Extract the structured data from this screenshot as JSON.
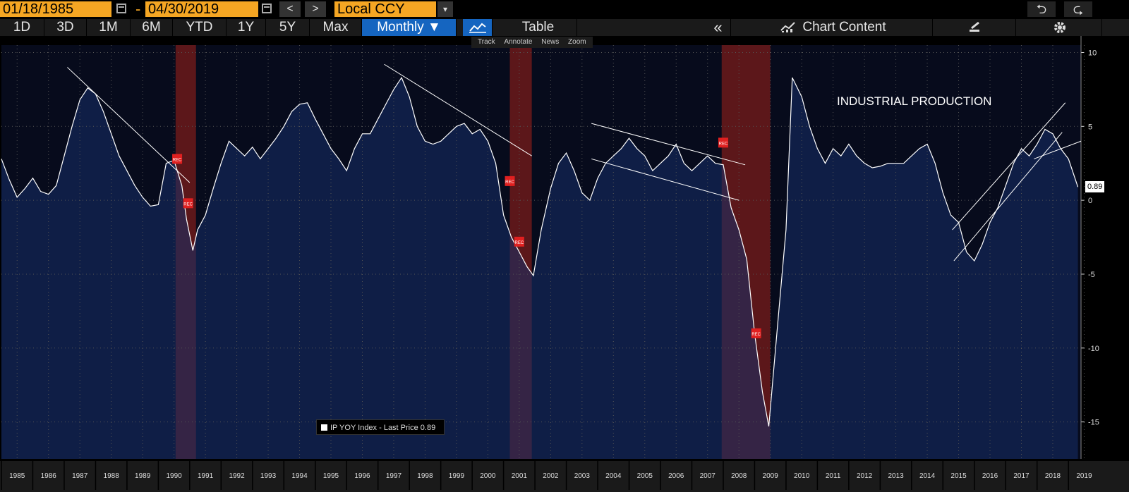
{
  "toolbar": {
    "start_date": "01/18/1985",
    "separator": "-",
    "end_date": "04/30/2019",
    "prev": "<",
    "next": ">",
    "currency": "Local CCY",
    "currency_dropdown": "▾",
    "undo": "⮌",
    "redo": "⮎"
  },
  "periods": [
    "1D",
    "3D",
    "1M",
    "6M",
    "YTD",
    "1Y",
    "5Y",
    "Max"
  ],
  "frequency": "Monthly ▼",
  "table_label": "Table",
  "collapse_label": "«",
  "chart_content_label": "Chart Content",
  "chart_tools": [
    "Track",
    "Annotate",
    "News",
    "Zoom"
  ],
  "legend": {
    "text": "IP  YOY Index - Last Price 0.89",
    "color": "#ffffff"
  },
  "last_price_label": "0.89",
  "annotation": "INDUSTRIAL PRODUCTION",
  "rec_label": "REC",
  "colors": {
    "accent": "#f5a623",
    "active": "#1565c0",
    "line": "#ffffff",
    "recession": "#7a1c1c",
    "area": "#1a2a50"
  },
  "chart_data": {
    "type": "area",
    "y_ticks": [
      10,
      5,
      0,
      -5,
      -10,
      -15
    ],
    "y_tick_labels": [
      "10",
      "5",
      "0",
      "-5",
      "-10",
      "-15"
    ],
    "ylim": [
      -17.5,
      10.5
    ],
    "xlim": [
      1985.0,
      2019.4
    ],
    "x_ticks": [
      "1985",
      "1986",
      "1987",
      "1988",
      "1989",
      "1990",
      "1991",
      "1992",
      "1993",
      "1994",
      "1995",
      "1996",
      "1997",
      "1998",
      "1999",
      "2000",
      "2001",
      "2002",
      "2003",
      "2004",
      "2005",
      "2006",
      "2007",
      "2008",
      "2009",
      "2010",
      "2011",
      "2012",
      "2013",
      "2014",
      "2015",
      "2016",
      "2017",
      "2018",
      "2019"
    ],
    "grid": true,
    "legend_position": "bottom-left",
    "recessions": [
      [
        1990.55,
        1991.2
      ],
      [
        2001.2,
        2001.9
      ],
      [
        2007.95,
        2009.5
      ]
    ],
    "series": [
      {
        "name": "IP  YOY Index - Last Price",
        "x": [
          1985.0,
          1985.25,
          1985.5,
          1985.75,
          1986.0,
          1986.25,
          1986.5,
          1986.75,
          1987.0,
          1987.25,
          1987.5,
          1987.75,
          1988.0,
          1988.25,
          1988.5,
          1988.75,
          1989.0,
          1989.25,
          1989.5,
          1989.75,
          1990.0,
          1990.25,
          1990.5,
          1990.75,
          1990.9,
          1991.1,
          1991.25,
          1991.5,
          1991.75,
          1992.0,
          1992.25,
          1992.5,
          1992.75,
          1993.0,
          1993.25,
          1993.5,
          1993.75,
          1994.0,
          1994.25,
          1994.5,
          1994.75,
          1995.0,
          1995.25,
          1995.5,
          1995.75,
          1996.0,
          1996.25,
          1996.5,
          1996.75,
          1997.0,
          1997.25,
          1997.5,
          1997.75,
          1998.0,
          1998.25,
          1998.5,
          1998.75,
          1999.0,
          1999.25,
          1999.5,
          1999.75,
          2000.0,
          2000.25,
          2000.5,
          2000.75,
          2001.0,
          2001.25,
          2001.5,
          2001.75,
          2001.95,
          2002.2,
          2002.5,
          2002.75,
          2003.0,
          2003.25,
          2003.5,
          2003.75,
          2004.0,
          2004.25,
          2004.5,
          2004.75,
          2005.0,
          2005.25,
          2005.5,
          2005.75,
          2006.0,
          2006.25,
          2006.5,
          2006.75,
          2007.0,
          2007.25,
          2007.5,
          2007.75,
          2008.0,
          2008.25,
          2008.5,
          2008.75,
          2009.0,
          2009.25,
          2009.45,
          2009.75,
          2010.0,
          2010.2,
          2010.5,
          2010.75,
          2011.0,
          2011.25,
          2011.5,
          2011.75,
          2012.0,
          2012.25,
          2012.5,
          2012.75,
          2013.0,
          2013.25,
          2013.5,
          2013.75,
          2014.0,
          2014.25,
          2014.5,
          2014.75,
          2015.0,
          2015.25,
          2015.5,
          2015.75,
          2016.0,
          2016.25,
          2016.5,
          2016.75,
          2017.0,
          2017.25,
          2017.5,
          2017.75,
          2018.0,
          2018.25,
          2018.5,
          2018.75,
          2019.0,
          2019.3
        ],
        "y": [
          2.8,
          1.4,
          0.2,
          0.8,
          1.5,
          0.6,
          0.4,
          1.0,
          3.0,
          5.0,
          6.8,
          7.6,
          7.2,
          6.0,
          4.5,
          3.0,
          2.0,
          1.0,
          0.2,
          -0.4,
          -0.3,
          2.5,
          2.7,
          1.0,
          -1.3,
          -3.4,
          -2.0,
          -1.0,
          0.8,
          2.5,
          4.0,
          3.5,
          3.0,
          3.6,
          2.8,
          3.5,
          4.2,
          5.0,
          6.0,
          6.5,
          6.6,
          5.5,
          4.5,
          3.5,
          2.8,
          2.0,
          3.5,
          4.5,
          4.5,
          5.5,
          6.5,
          7.5,
          8.3,
          7.0,
          5.0,
          4.0,
          3.8,
          4.0,
          4.5,
          5.0,
          5.2,
          4.5,
          4.8,
          4.0,
          2.5,
          -1.0,
          -2.5,
          -3.5,
          -4.5,
          -5.1,
          -2.0,
          0.8,
          2.5,
          3.2,
          2.0,
          0.5,
          0.0,
          1.5,
          2.5,
          3.0,
          3.5,
          4.2,
          3.5,
          3.0,
          2.0,
          2.5,
          3.0,
          3.8,
          2.5,
          2.0,
          2.5,
          3.0,
          2.5,
          2.4,
          -0.5,
          -2.0,
          -4.0,
          -9.0,
          -13.0,
          -15.3,
          -8.0,
          -2.0,
          8.3,
          7.0,
          5.0,
          3.5,
          2.5,
          3.5,
          3.0,
          3.8,
          3.0,
          2.5,
          2.2,
          2.3,
          2.5,
          2.5,
          2.5,
          3.0,
          3.5,
          3.8,
          2.5,
          0.5,
          -1.0,
          -1.5,
          -3.5,
          -4.1,
          -3.0,
          -1.5,
          -0.5,
          1.0,
          2.5,
          3.5,
          3.0,
          3.8,
          4.8,
          4.5,
          3.5,
          2.8,
          0.9
        ]
      }
    ]
  }
}
